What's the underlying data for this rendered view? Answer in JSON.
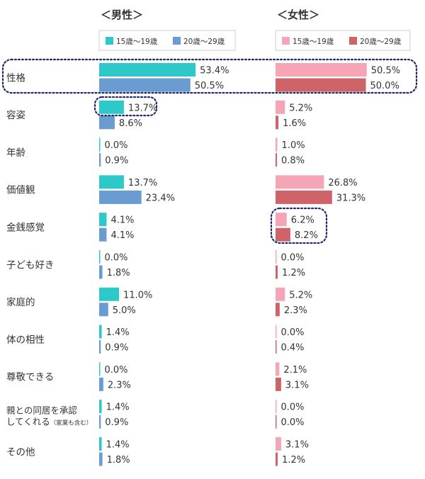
{
  "chart_data": {
    "type": "bar",
    "unit": "%",
    "panels": [
      {
        "title": "＜男性＞",
        "series": [
          {
            "name": "15歳〜19歳",
            "color": "#2ec8c8",
            "values": [
              53.4,
              13.7,
              0.0,
              13.7,
              4.1,
              0.0,
              11.0,
              1.4,
              0.0,
              1.4,
              1.4
            ]
          },
          {
            "name": "20歳〜29歳",
            "color": "#6a9bd1",
            "values": [
              50.5,
              8.6,
              0.9,
              23.4,
              4.1,
              1.8,
              5.0,
              0.9,
              2.3,
              0.9,
              1.8
            ]
          }
        ]
      },
      {
        "title": "＜女性＞",
        "series": [
          {
            "name": "15歳〜19歳",
            "color": "#f5a5b5",
            "values": [
              50.5,
              5.2,
              1.0,
              26.8,
              6.2,
              0.0,
              5.2,
              0.0,
              2.1,
              0.0,
              3.1
            ]
          },
          {
            "name": "20歳〜29歳",
            "color": "#cf6468",
            "values": [
              50.0,
              1.6,
              0.8,
              31.3,
              8.2,
              1.2,
              2.3,
              0.4,
              3.1,
              0.0,
              1.2
            ]
          }
        ]
      }
    ],
    "categories": [
      [
        "性格"
      ],
      [
        "容姿"
      ],
      [
        "年齢"
      ],
      [
        "価値観"
      ],
      [
        "金銭感覚"
      ],
      [
        "子ども好き"
      ],
      [
        "家庭的"
      ],
      [
        "体の相性"
      ],
      [
        "尊敬できる"
      ],
      [
        "親との同居を承認",
        "してくれる",
        "（家業も含む）"
      ],
      [
        "その他"
      ]
    ],
    "highlight_color": "#1f2a6b"
  }
}
